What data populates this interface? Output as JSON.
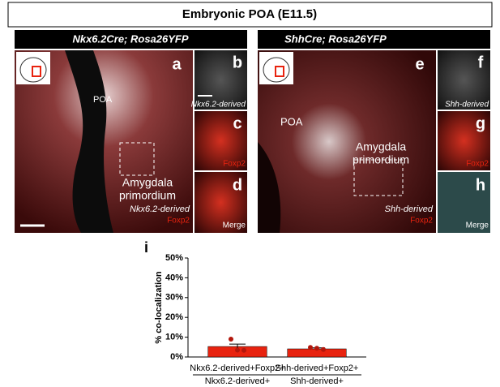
{
  "figure": {
    "title": "Embryonic POA (E11.5)",
    "left": {
      "header": "Nkx6.2Cre; Rosa26YFP",
      "panels": [
        "a",
        "b",
        "c",
        "d"
      ],
      "poa": "POA",
      "region": [
        "Amygdala",
        "primordium"
      ],
      "derived": "Nkx6.2-derived",
      "marker": "Foxp2",
      "inset_b": "Nkx6.2-derived",
      "inset_c": "Foxp2",
      "inset_d": "Merge"
    },
    "right": {
      "header": "ShhCre; Rosa26YFP",
      "panels": [
        "e",
        "f",
        "g",
        "h"
      ],
      "poa": "POA",
      "region": [
        "Amygdala",
        "primordium"
      ],
      "derived": "Shh-derived",
      "marker": "Foxp2",
      "inset_f": "Shh-derived",
      "inset_g": "Foxp2",
      "inset_h": "Merge"
    }
  },
  "chart_data": {
    "type": "bar",
    "panel": "i",
    "ylabel": "% co-localization",
    "categories": [
      [
        "Nkx6.2-derived+Foxp2+",
        "Nkx6.2-derived+"
      ],
      [
        "Shh-derived+Foxp2+",
        "Shh-derived+"
      ]
    ],
    "values": [
      5.3,
      4.1
    ],
    "errors": [
      1.2,
      0.5
    ],
    "points": [
      [
        9.0,
        3.5,
        3.4
      ],
      [
        4.8,
        4.4,
        3.8
      ]
    ],
    "color": "#e8230f",
    "point_color": "#b3170c",
    "ylim": [
      0,
      50
    ],
    "yticks": [
      {
        "value": 0,
        "label": "0%"
      },
      {
        "value": 10,
        "label": "10%"
      },
      {
        "value": 20,
        "label": "20%"
      },
      {
        "value": 30,
        "label": "30%"
      },
      {
        "value": 40,
        "label": "40%"
      },
      {
        "value": 50,
        "label": "50%"
      }
    ]
  }
}
